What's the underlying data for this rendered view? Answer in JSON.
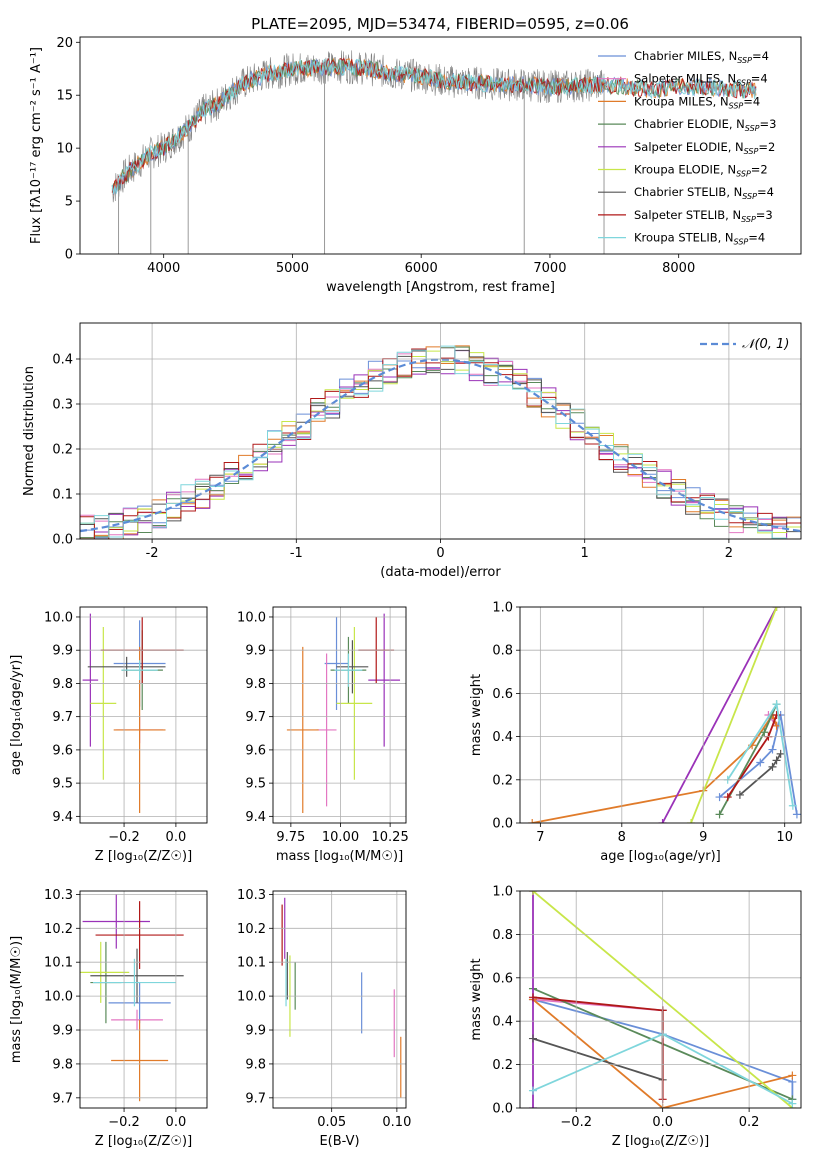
{
  "figure": {
    "title": "PLATE=2095, MJD=53474, FIBERID=0595, z=0.06"
  },
  "chart_data": [
    {
      "id": "spectrum",
      "type": "line",
      "title": "PLATE=2095, MJD=53474, FIBERID=0595, z=0.06",
      "xlabel": "wavelength [Angstrom, rest frame]",
      "ylabel": "Flux [fλ10⁻¹⁷ erg cm⁻² s⁻¹ A⁻¹]",
      "xlim": [
        3350,
        8950
      ],
      "ylim": [
        0,
        20.5
      ],
      "xticks": [
        4000,
        5000,
        6000,
        7000,
        8000
      ],
      "yticks": [
        0,
        5,
        10,
        15,
        20
      ],
      "grid": false,
      "legend_position": "right",
      "continuum": {
        "x": [
          3600,
          3700,
          3800,
          3900,
          4000,
          4100,
          4200,
          4300,
          4400,
          4500,
          4600,
          4700,
          4800,
          4900,
          5000,
          5200,
          5400,
          5600,
          5800,
          6000,
          6200,
          6400,
          6600,
          6800,
          7000,
          7200,
          7400,
          7600,
          7800,
          8000,
          8200,
          8400,
          8600
        ],
        "y": [
          6.0,
          7.5,
          8.5,
          9.5,
          10.0,
          11.0,
          12.0,
          13.5,
          14.0,
          15.0,
          16.0,
          16.5,
          17.0,
          17.2,
          17.5,
          17.6,
          17.7,
          17.5,
          17.0,
          16.8,
          16.3,
          16.2,
          16.0,
          16.0,
          15.8,
          15.9,
          16.0,
          15.8,
          15.5,
          15.8,
          15.8,
          15.6,
          15.4
        ]
      },
      "spikes_to_zero": [
        3650,
        3900,
        4190,
        5250,
        6800,
        7420
      ],
      "series": [
        {
          "name": "Chabrier MILES, N_SSP=4",
          "color": "#6a8fd8"
        },
        {
          "name": "Salpeter MILES, N_SSP=4",
          "color": "#e377c2"
        },
        {
          "name": "Kroupa MILES, N_SSP=4",
          "color": "#e07b2a"
        },
        {
          "name": "Chabrier ELODIE, N_SSP=3",
          "color": "#5a8a5a"
        },
        {
          "name": "Salpeter ELODIE, N_SSP=2",
          "color": "#9a32b8"
        },
        {
          "name": "Kroupa ELODIE, N_SSP=2",
          "color": "#c8e64a"
        },
        {
          "name": "Chabrier STELIB, N_SSP=4",
          "color": "#555555"
        },
        {
          "name": "Salpeter STELIB, N_SSP=3",
          "color": "#b01818"
        },
        {
          "name": "Kroupa STELIB, N_SSP=4",
          "color": "#7fd6dc"
        }
      ]
    },
    {
      "id": "residuals",
      "type": "line",
      "xlabel": "(data-model)/error",
      "ylabel": "Normed distribution",
      "xlim": [
        -2.5,
        2.5
      ],
      "ylim": [
        0,
        0.48
      ],
      "xticks": [
        -2,
        -1,
        0,
        1,
        2
      ],
      "yticks": [
        0.0,
        0.1,
        0.2,
        0.3,
        0.4
      ],
      "grid": true,
      "legend_position": "top-right",
      "legend": "𝒩(0, 1)",
      "gaussian_color": "#5b8bd6",
      "bins": [
        -2.5,
        -2.4,
        -2.3,
        -2.2,
        -2.1,
        -2.0,
        -1.9,
        -1.8,
        -1.7,
        -1.6,
        -1.5,
        -1.4,
        -1.3,
        -1.2,
        -1.1,
        -1.0,
        -0.9,
        -0.8,
        -0.7,
        -0.6,
        -0.5,
        -0.4,
        -0.3,
        -0.2,
        -0.1,
        0.0,
        0.1,
        0.2,
        0.3,
        0.4,
        0.5,
        0.6,
        0.7,
        0.8,
        0.9,
        1.0,
        1.1,
        1.2,
        1.3,
        1.4,
        1.5,
        1.6,
        1.7,
        1.8,
        1.9,
        2.0,
        2.1,
        2.2,
        2.3,
        2.4,
        2.5
      ],
      "colors": [
        "#6a8fd8",
        "#e377c2",
        "#e07b2a",
        "#5a8a5a",
        "#9a32b8",
        "#c8e64a",
        "#555555",
        "#b01818",
        "#7fd6dc"
      ]
    },
    {
      "id": "age-vs-Z",
      "type": "scatter",
      "xlabel": "Z [log₁₀(Z/Z☉)]",
      "ylabel": "age  [log₁₀(age/yr)]",
      "xlim": [
        -0.37,
        0.12
      ],
      "ylim": [
        9.38,
        10.03
      ],
      "xticks": [
        -0.2,
        0.0
      ],
      "xtick_labels": [
        "−0.2",
        "0.0"
      ],
      "yticks": [
        9.4,
        9.5,
        9.6,
        9.7,
        9.8,
        9.9,
        10.0
      ],
      "grid": true,
      "points": [
        {
          "color": "#6a8fd8",
          "x": -0.14,
          "xerr": 0.1,
          "y": 9.86,
          "yerr": 0.13
        },
        {
          "color": "#e377c2",
          "x": -0.14,
          "xerr": 0.09,
          "y": 9.66,
          "yerr": 0.04
        },
        {
          "color": "#e07b2a",
          "x": -0.14,
          "xerr": 0.1,
          "y": 9.66,
          "yerr": 0.25
        },
        {
          "color": "#5a8a5a",
          "x": -0.13,
          "xerr": 0.08,
          "y": 9.84,
          "yerr": 0.12
        },
        {
          "color": "#9a32b8",
          "x": -0.33,
          "xerr": 0.03,
          "y": 9.81,
          "yerr": 0.2
        },
        {
          "color": "#c8e64a",
          "x": -0.28,
          "xerr": 0.05,
          "y": 9.74,
          "yerr": 0.23
        },
        {
          "color": "#555555",
          "x": -0.19,
          "xerr": 0.15,
          "y": 9.85,
          "yerr": 0.03
        },
        {
          "color": "#b01818",
          "x": -0.13,
          "xerr": 0.16,
          "y": 9.9,
          "yerr": 0.1
        },
        {
          "color": "#7fd6dc",
          "x": -0.14,
          "xerr": 0.07,
          "y": 9.84,
          "yerr": 0.03
        }
      ]
    },
    {
      "id": "age-vs-mass",
      "type": "scatter",
      "xlabel": "mass [log₁₀(M/M☉)]",
      "xlim": [
        9.66,
        10.33
      ],
      "ylim": [
        9.38,
        10.03
      ],
      "xticks": [
        9.75,
        10.0,
        10.25
      ],
      "xtick_labels": [
        "9.75",
        "10.00",
        "10.25"
      ],
      "yticks": [
        9.4,
        9.5,
        9.6,
        9.7,
        9.8,
        9.9,
        10.0
      ],
      "grid": true,
      "points": [
        {
          "color": "#6a8fd8",
          "x": 9.98,
          "xerr": 0.06,
          "y": 9.86,
          "yerr": 0.14
        },
        {
          "color": "#e377c2",
          "x": 9.93,
          "xerr": 0.05,
          "y": 9.66,
          "yerr": 0.23
        },
        {
          "color": "#e07b2a",
          "x": 9.81,
          "xerr": 0.08,
          "y": 9.66,
          "yerr": 0.25
        },
        {
          "color": "#5a8a5a",
          "x": 10.04,
          "xerr": 0.09,
          "y": 9.84,
          "yerr": 0.1
        },
        {
          "color": "#9a32b8",
          "x": 10.22,
          "xerr": 0.08,
          "y": 9.81,
          "yerr": 0.2
        },
        {
          "color": "#c8e64a",
          "x": 10.07,
          "xerr": 0.09,
          "y": 9.74,
          "yerr": 0.23
        },
        {
          "color": "#555555",
          "x": 10.06,
          "xerr": 0.08,
          "y": 9.85,
          "yerr": 0.08
        },
        {
          "color": "#b01818",
          "x": 10.18,
          "xerr": 0.09,
          "y": 9.9,
          "yerr": 0.1
        },
        {
          "color": "#7fd6dc",
          "x": 10.04,
          "xerr": 0.07,
          "y": 9.84,
          "yerr": 0.05
        }
      ]
    },
    {
      "id": "weight-vs-age",
      "type": "line",
      "xlabel": "age  [log₁₀(age/yr)]",
      "ylabel": "mass weight",
      "xlim": [
        6.75,
        10.2
      ],
      "ylim": [
        0,
        1
      ],
      "xticks": [
        7,
        8,
        9,
        10
      ],
      "yticks": [
        0.0,
        0.2,
        0.4,
        0.6,
        0.8,
        1.0
      ],
      "grid": true,
      "series": [
        {
          "color": "#6a8fd8",
          "x": [
            9.2,
            9.7,
            9.85,
            9.95,
            10.15
          ],
          "y": [
            0.12,
            0.28,
            0.34,
            0.5,
            0.04
          ]
        },
        {
          "color": "#e377c2",
          "x": [
            9.8,
            9.9
          ],
          "y": [
            0.5,
            0.45
          ]
        },
        {
          "color": "#e07b2a",
          "x": [
            6.9,
            9.0,
            9.6,
            9.85,
            9.9
          ],
          "y": [
            0.0,
            0.15,
            0.36,
            0.5,
            0.45
          ]
        },
        {
          "color": "#5a8a5a",
          "x": [
            9.2,
            9.75,
            9.9
          ],
          "y": [
            0.04,
            0.42,
            0.55
          ]
        },
        {
          "color": "#9a32b8",
          "x": [
            8.5,
            9.9
          ],
          "y": [
            0.0,
            1.0
          ]
        },
        {
          "color": "#c8e64a",
          "x": [
            8.85,
            9.9
          ],
          "y": [
            0.0,
            1.0
          ]
        },
        {
          "color": "#555555",
          "x": [
            9.45,
            9.85,
            9.9,
            9.95
          ],
          "y": [
            0.13,
            0.26,
            0.29,
            0.32
          ]
        },
        {
          "color": "#b01818",
          "x": [
            9.3,
            9.8,
            9.9
          ],
          "y": [
            0.12,
            0.4,
            0.5
          ]
        },
        {
          "color": "#7fd6dc",
          "x": [
            9.3,
            9.9,
            10.1
          ],
          "y": [
            0.2,
            0.55,
            0.08
          ]
        }
      ]
    },
    {
      "id": "mass-vs-Z",
      "type": "scatter",
      "xlabel": "Z [log₁₀(Z/Z☉)]",
      "ylabel": "mass [log₁₀(M/M☉)]",
      "xlim": [
        -0.37,
        0.12
      ],
      "ylim": [
        9.67,
        10.31
      ],
      "xticks": [
        -0.2,
        0.0
      ],
      "xtick_labels": [
        "−0.2",
        "0.0"
      ],
      "yticks": [
        9.7,
        9.8,
        9.9,
        10.0,
        10.1,
        10.2,
        10.3
      ],
      "grid": true,
      "points": [
        {
          "color": "#6a8fd8",
          "x": -0.14,
          "xerr": 0.12,
          "y": 9.98,
          "yerr": 0.06
        },
        {
          "color": "#e377c2",
          "x": -0.15,
          "xerr": 0.1,
          "y": 9.93,
          "yerr": 0.03
        },
        {
          "color": "#e07b2a",
          "x": -0.14,
          "xerr": 0.11,
          "y": 9.81,
          "yerr": 0.12
        },
        {
          "color": "#5a8a5a",
          "x": -0.27,
          "xerr": 0.06,
          "y": 10.04,
          "yerr": 0.12
        },
        {
          "color": "#9a32b8",
          "x": -0.23,
          "xerr": 0.13,
          "y": 10.22,
          "yerr": 0.08
        },
        {
          "color": "#c8e64a",
          "x": -0.29,
          "xerr": 0.11,
          "y": 10.07,
          "yerr": 0.09
        },
        {
          "color": "#555555",
          "x": -0.15,
          "xerr": 0.18,
          "y": 10.06,
          "yerr": 0.08
        },
        {
          "color": "#b01818",
          "x": -0.14,
          "xerr": 0.17,
          "y": 10.18,
          "yerr": 0.1
        },
        {
          "color": "#7fd6dc",
          "x": -0.16,
          "xerr": 0.16,
          "y": 10.04,
          "yerr": 0.07
        }
      ]
    },
    {
      "id": "mass-vs-EBV",
      "type": "scatter",
      "xlabel": "E(B-V)",
      "xlim": [
        0.005,
        0.107
      ],
      "ylim": [
        9.67,
        10.31
      ],
      "xticks": [
        0.05,
        0.1
      ],
      "xtick_labels": [
        "0.05",
        "0.10"
      ],
      "yticks": [
        9.7,
        9.8,
        9.9,
        10.0,
        10.1,
        10.2,
        10.3
      ],
      "grid": true,
      "points": [
        {
          "color": "#6a8fd8",
          "x": 0.073,
          "y": 9.98,
          "yerr": 0.09
        },
        {
          "color": "#e377c2",
          "x": 0.098,
          "y": 9.92,
          "yerr": 0.1
        },
        {
          "color": "#e07b2a",
          "x": 0.103,
          "y": 9.79,
          "yerr": 0.09
        },
        {
          "color": "#5a8a5a",
          "x": 0.022,
          "y": 10.03,
          "yerr": 0.07
        },
        {
          "color": "#9a32b8",
          "x": 0.014,
          "y": 10.2,
          "yerr": 0.09
        },
        {
          "color": "#c8e64a",
          "x": 0.018,
          "y": 10.0,
          "yerr": 0.12
        },
        {
          "color": "#555555",
          "x": 0.016,
          "y": 10.06,
          "yerr": 0.07
        },
        {
          "color": "#b01818",
          "x": 0.012,
          "y": 10.18,
          "yerr": 0.09
        },
        {
          "color": "#7fd6dc",
          "x": 0.015,
          "y": 10.04,
          "yerr": 0.07
        }
      ]
    },
    {
      "id": "weight-vs-Z",
      "type": "line",
      "xlabel": "Z [log₁₀(Z/Z☉)]",
      "ylabel": "mass weight",
      "xlim": [
        -0.33,
        0.32
      ],
      "ylim": [
        0,
        1
      ],
      "xticks": [
        -0.2,
        0.0,
        0.2
      ],
      "xtick_labels": [
        "−0.2",
        "0.0",
        "0.2"
      ],
      "yticks": [
        0.0,
        0.2,
        0.4,
        0.6,
        0.8,
        1.0
      ],
      "grid": true,
      "series": [
        {
          "color": "#6a8fd8",
          "x": [
            -0.3,
            0.0,
            0.3,
            0.3
          ],
          "y": [
            0.5,
            0.34,
            0.12,
            0.04
          ]
        },
        {
          "color": "#e377c2",
          "x": [
            -0.3,
            0.0
          ],
          "y": [
            0.5,
            0.45
          ]
        },
        {
          "color": "#e07b2a",
          "x": [
            -0.3,
            0.0,
            0.3
          ],
          "y": [
            0.5,
            0.0,
            0.15
          ]
        },
        {
          "color": "#5a8a5a",
          "x": [
            -0.3,
            0.3
          ],
          "y": [
            0.55,
            0.04
          ]
        },
        {
          "color": "#9a32b8",
          "x": [
            -0.3,
            -0.3
          ],
          "y": [
            0.0,
            1.0
          ]
        },
        {
          "color": "#c8e64a",
          "x": [
            -0.3,
            0.3
          ],
          "y": [
            1.0,
            0.0
          ]
        },
        {
          "color": "#555555",
          "x": [
            -0.3,
            0.0,
            0.0
          ],
          "y": [
            0.32,
            0.13,
            0.45
          ]
        },
        {
          "color": "#b01818",
          "x": [
            -0.3,
            0.0,
            0.0
          ],
          "y": [
            0.51,
            0.45,
            0.04
          ]
        },
        {
          "color": "#7fd6dc",
          "x": [
            -0.3,
            0.0,
            0.3
          ],
          "y": [
            0.08,
            0.34,
            0.02
          ]
        }
      ]
    }
  ]
}
